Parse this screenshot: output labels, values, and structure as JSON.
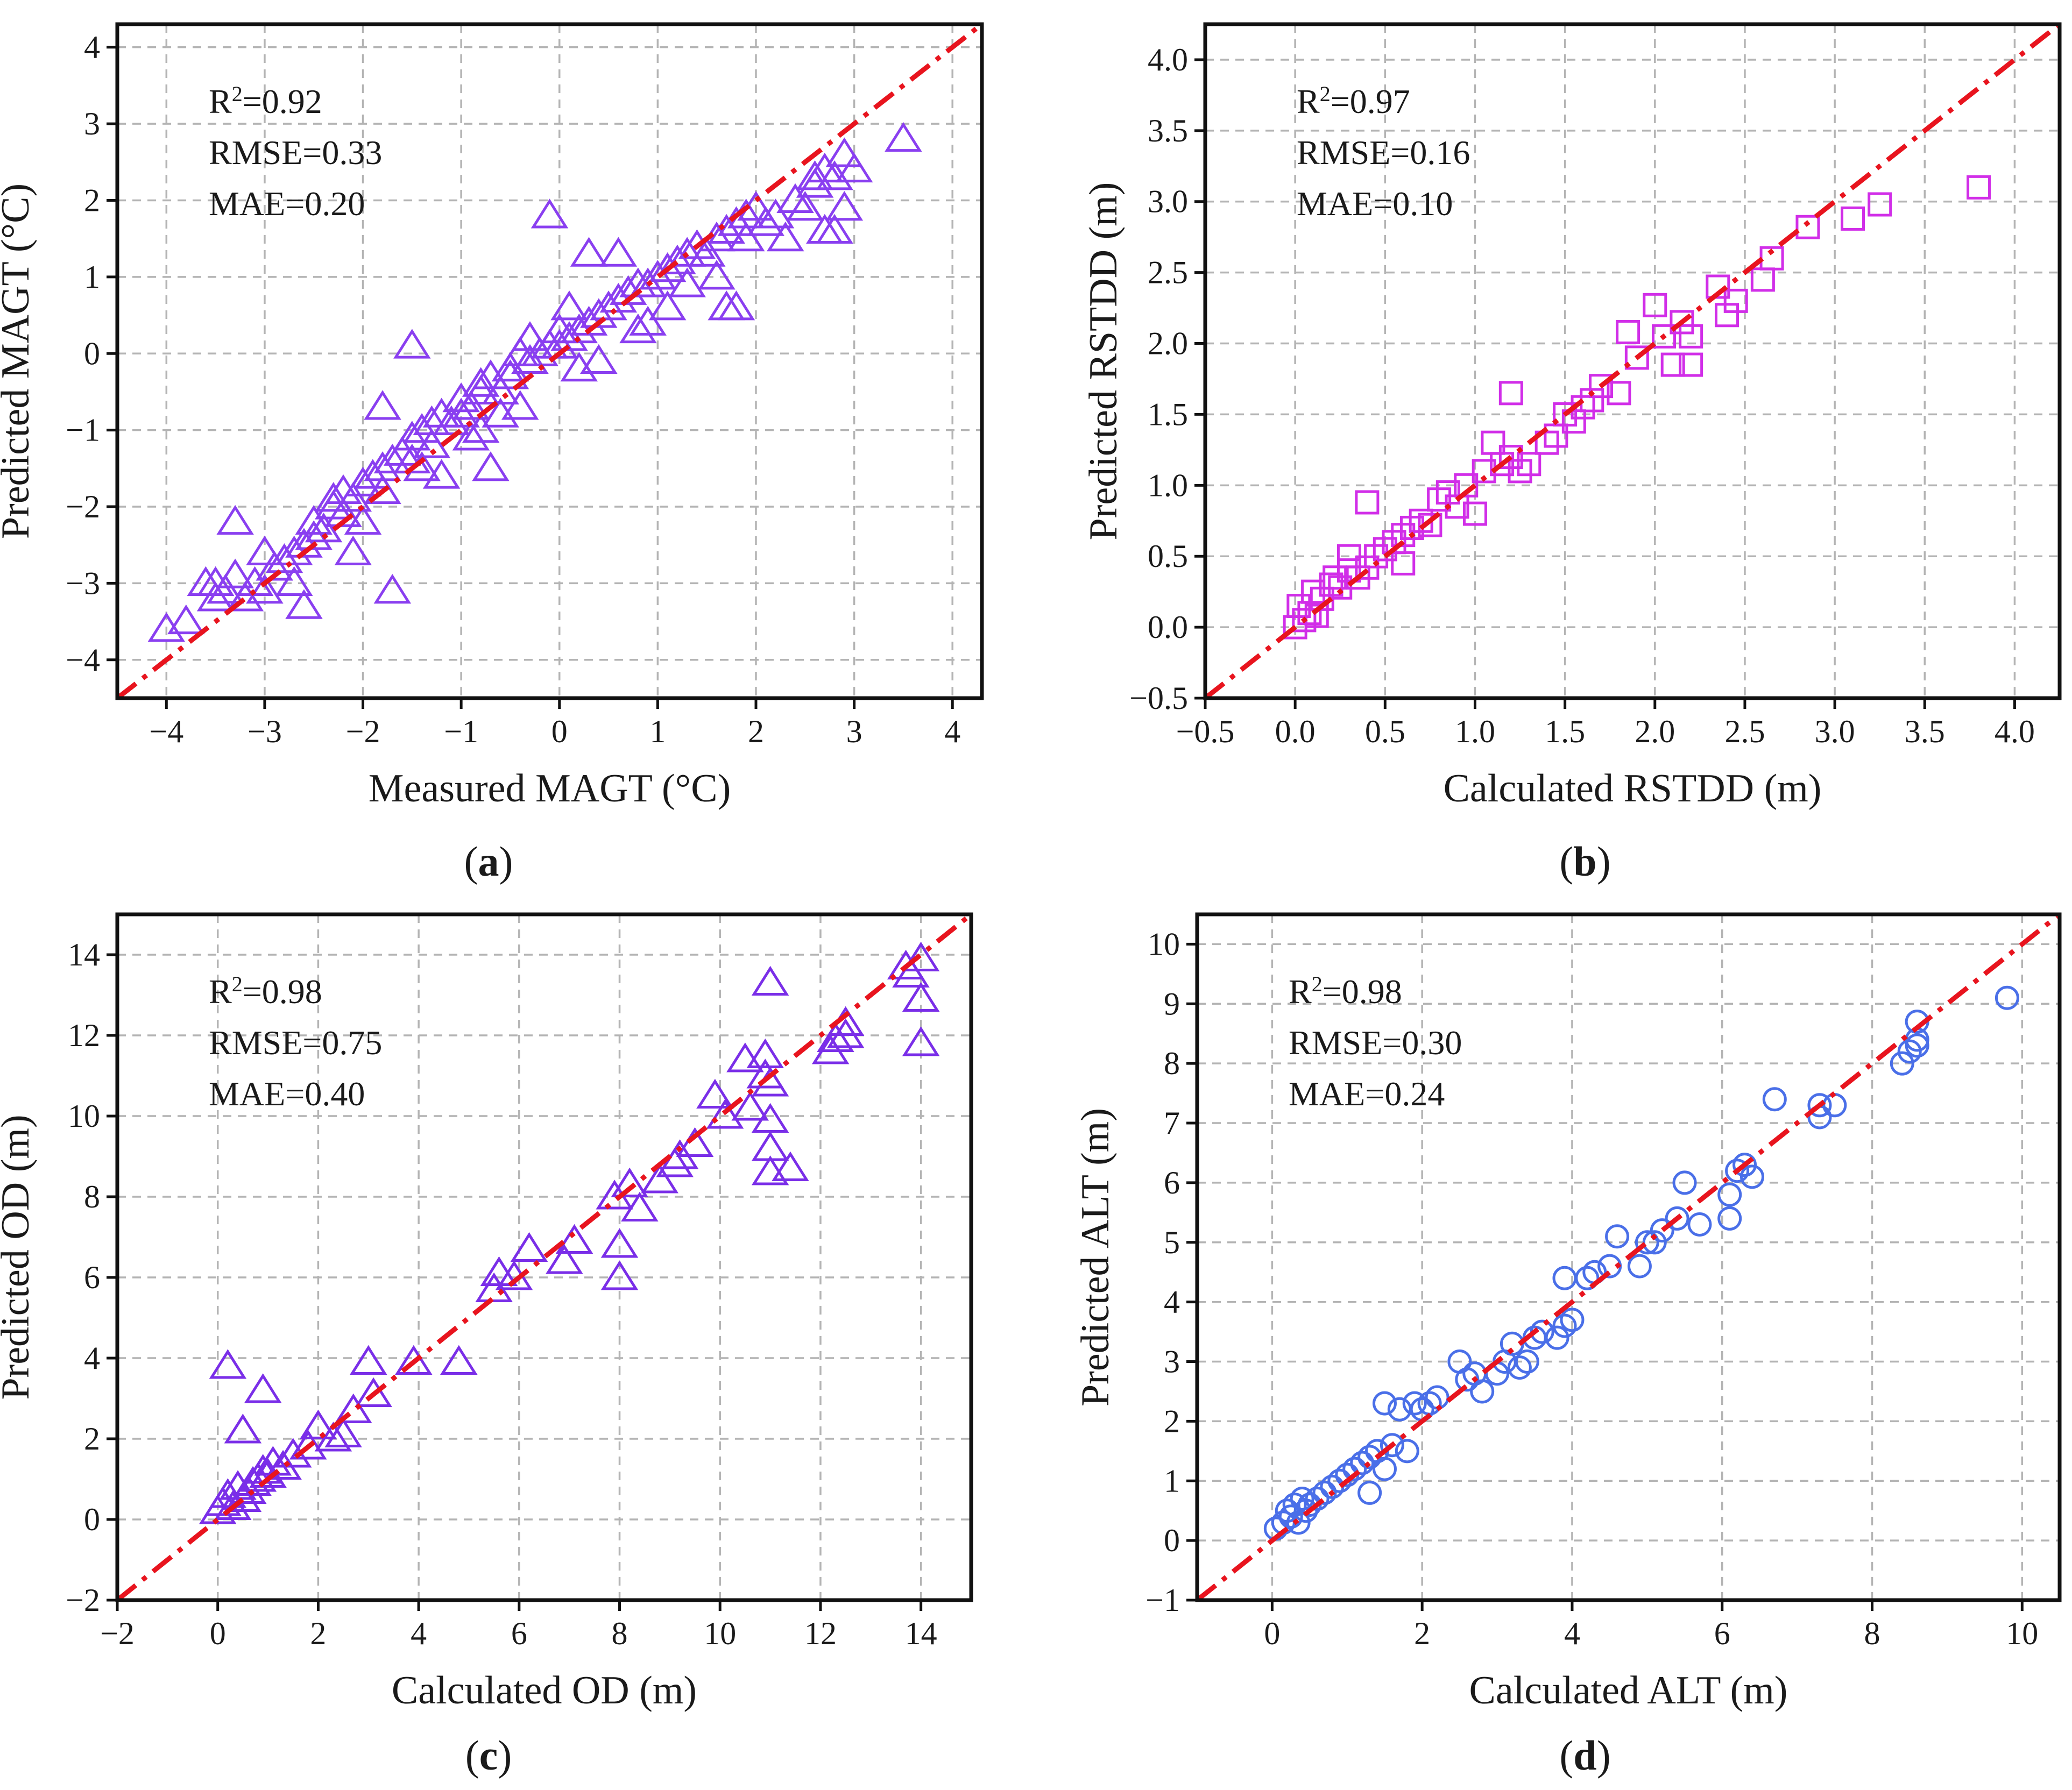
{
  "colors": {
    "triangle_purple": "#8a3ff0",
    "square_magenta": "#d12ee8",
    "circle_blue": "#4a6fe8",
    "reference_line": "#e8141e",
    "grid": "#b4b4b4",
    "axis": "#111111"
  },
  "chart_data": [
    {
      "type": "scatter",
      "panel_label": "(a)",
      "marker": "triangle",
      "color": "#8a3ff0",
      "xlabel": "Measured MAGT (°C)",
      "ylabel": "Predicted MAGT (°C)",
      "xlim": [
        -4.5,
        4.3
      ],
      "ylim": [
        -4.5,
        4.3
      ],
      "xticks": [
        -4,
        -3,
        -2,
        -1,
        0,
        1,
        2,
        3,
        4
      ],
      "yticks": [
        -4,
        -3,
        -2,
        -1,
        0,
        1,
        2,
        3,
        4
      ],
      "xtick_labels": [
        "−4",
        "−3",
        "−2",
        "−1",
        "0",
        "1",
        "2",
        "3",
        "4"
      ],
      "ytick_labels": [
        "−4",
        "−3",
        "−2",
        "−1",
        "0",
        "1",
        "2",
        "3",
        "4"
      ],
      "grid": true,
      "reference_line": "1:1",
      "stats": {
        "r2": "0.92",
        "rmse": "RMSE=0.33",
        "mae": "MAE=0.20"
      },
      "x": [
        -4.0,
        -3.8,
        -3.6,
        -3.5,
        -3.4,
        -3.3,
        -3.2,
        -3.1,
        -3.0,
        -2.9,
        -2.8,
        -2.7,
        -2.6,
        -2.5,
        -2.5,
        -2.4,
        -2.3,
        -2.2,
        -2.2,
        -2.1,
        -2.0,
        -1.9,
        -1.8,
        -1.8,
        -1.7,
        -1.6,
        -1.5,
        -1.5,
        -1.4,
        -1.3,
        -1.3,
        -1.2,
        -1.1,
        -1.0,
        -1.0,
        -0.9,
        -0.8,
        -0.8,
        -0.7,
        -0.6,
        -0.5,
        -0.5,
        -0.4,
        -0.3,
        -0.3,
        -0.2,
        -0.1,
        0.0,
        0.0,
        0.1,
        0.2,
        0.3,
        0.4,
        0.5,
        0.6,
        0.7,
        0.8,
        0.9,
        1.0,
        1.1,
        1.2,
        1.3,
        1.4,
        1.5,
        1.6,
        1.7,
        1.8,
        1.9,
        2.0,
        2.1,
        2.3,
        2.5,
        2.6,
        2.7,
        2.8,
        2.9,
        3.0,
        3.5,
        -1.5,
        -0.1,
        -1.8,
        -1.7,
        -3.3,
        -2.6,
        -2.1,
        -0.7,
        0.2,
        0.6,
        1.7,
        1.8,
        2.7,
        2.9,
        -0.8,
        -1.4,
        -2.0,
        -2.7,
        0.9,
        1.3,
        1.6,
        -0.4,
        -0.6,
        0.4,
        0.8,
        1.1,
        1.9,
        2.2,
        -1.2,
        -0.9,
        -3.0,
        -3.5,
        -2.3,
        0.3,
        0.1,
        2.4,
        2.6,
        2.8
      ],
      "y": [
        -3.6,
        -3.5,
        -3.0,
        -3.2,
        -3.1,
        -2.9,
        -3.2,
        -3.0,
        -2.6,
        -2.8,
        -2.7,
        -2.6,
        -2.5,
        -2.4,
        -2.2,
        -2.3,
        -2.0,
        -2.1,
        -1.8,
        -1.9,
        -1.7,
        -1.6,
        -1.5,
        -1.8,
        -1.4,
        -1.3,
        -1.4,
        -1.1,
        -1.0,
        -1.2,
        -0.9,
        -0.8,
        -0.9,
        -0.6,
        -0.8,
        -0.7,
        -0.5,
        -0.4,
        -0.3,
        -0.5,
        -0.2,
        -0.3,
        0.0,
        -0.1,
        0.2,
        0.0,
        0.1,
        0.3,
        0.1,
        0.2,
        0.3,
        0.4,
        0.5,
        0.6,
        0.7,
        0.8,
        0.9,
        0.9,
        1.0,
        1.1,
        1.2,
        1.3,
        1.4,
        1.3,
        1.5,
        1.6,
        1.7,
        1.8,
        1.9,
        1.7,
        1.5,
        1.9,
        2.2,
        2.4,
        2.3,
        2.6,
        2.4,
        2.8,
        0.1,
        1.8,
        -0.7,
        -3.1,
        -2.2,
        -3.3,
        -2.6,
        -1.5,
        -0.2,
        1.3,
        0.6,
        0.6,
        1.6,
        1.9,
        -1.0,
        -1.5,
        -2.2,
        -3.0,
        0.4,
        0.9,
        1.0,
        -0.7,
        -0.8,
        -0.1,
        0.3,
        0.6,
        1.5,
        1.8,
        -1.6,
        -1.1,
        -3.1,
        -3.0,
        -1.9,
        1.3,
        0.6,
        2.0,
        2.3,
        1.6
      ]
    },
    {
      "type": "scatter",
      "panel_label": "(b)",
      "marker": "square",
      "color": "#d12ee8",
      "xlabel": "Calculated RSTDD (m)",
      "ylabel": "Predicted RSTDD (m)",
      "xlim": [
        -0.5,
        4.25
      ],
      "ylim": [
        -0.5,
        4.25
      ],
      "xticks": [
        -0.5,
        0.0,
        0.5,
        1.0,
        1.5,
        2.0,
        2.5,
        3.0,
        3.5,
        4.0
      ],
      "yticks": [
        -0.5,
        0.0,
        0.5,
        1.0,
        1.5,
        2.0,
        2.5,
        3.0,
        3.5,
        4.0
      ],
      "xtick_labels": [
        "−0.5",
        "0.0",
        "0.5",
        "1.0",
        "1.5",
        "2.0",
        "2.5",
        "3.0",
        "3.5",
        "4.0"
      ],
      "ytick_labels": [
        "−0.5",
        "0.0",
        "0.5",
        "1.0",
        "1.5",
        "2.0",
        "2.5",
        "3.0",
        "3.5",
        "4.0"
      ],
      "grid": true,
      "reference_line": "1:1",
      "stats": {
        "r2": "0.97",
        "rmse": "RMSE=0.16",
        "mae": "MAE=0.10"
      },
      "x": [
        0.0,
        0.02,
        0.05,
        0.08,
        0.1,
        0.12,
        0.15,
        0.2,
        0.22,
        0.25,
        0.3,
        0.35,
        0.4,
        0.45,
        0.5,
        0.55,
        0.6,
        0.65,
        0.7,
        0.75,
        0.8,
        0.85,
        0.9,
        0.95,
        1.0,
        1.05,
        1.1,
        1.15,
        1.2,
        1.25,
        1.3,
        1.4,
        1.45,
        1.5,
        1.55,
        1.6,
        1.65,
        1.7,
        1.8,
        1.85,
        1.9,
        2.0,
        2.05,
        2.1,
        2.15,
        2.2,
        2.35,
        2.4,
        2.45,
        2.6,
        2.65,
        2.85,
        3.1,
        3.25,
        3.8,
        0.4,
        1.2,
        2.2,
        0.3,
        0.6
      ],
      "y": [
        0.0,
        0.15,
        0.05,
        0.1,
        0.25,
        0.08,
        0.2,
        0.3,
        0.35,
        0.28,
        0.4,
        0.35,
        0.42,
        0.5,
        0.55,
        0.6,
        0.65,
        0.7,
        0.75,
        0.72,
        0.9,
        0.95,
        0.85,
        1.0,
        0.8,
        1.1,
        1.3,
        1.15,
        1.2,
        1.1,
        1.15,
        1.3,
        1.35,
        1.5,
        1.45,
        1.55,
        1.6,
        1.7,
        1.65,
        2.08,
        1.9,
        2.27,
        2.05,
        1.85,
        2.15,
        2.05,
        2.4,
        2.2,
        2.3,
        2.45,
        2.6,
        2.82,
        2.88,
        2.98,
        3.1,
        0.88,
        1.65,
        1.85,
        0.5,
        0.45
      ]
    },
    {
      "type": "scatter",
      "panel_label": "(c)",
      "marker": "triangle",
      "color": "#7a2ee8",
      "xlabel": "Calculated OD (m)",
      "ylabel": "Predicted OD (m)",
      "xlim": [
        -2,
        15
      ],
      "ylim": [
        -2,
        15
      ],
      "xticks": [
        -2,
        0,
        2,
        4,
        6,
        8,
        10,
        12,
        14
      ],
      "yticks": [
        -2,
        0,
        2,
        4,
        6,
        8,
        10,
        12,
        14
      ],
      "xtick_labels": [
        "−2",
        "0",
        "2",
        "4",
        "6",
        "8",
        "10",
        "12",
        "14"
      ],
      "ytick_labels": [
        "−2",
        "0",
        "2",
        "4",
        "6",
        "8",
        "10",
        "12",
        "14"
      ],
      "grid": true,
      "reference_line": "1:1",
      "stats": {
        "r2": "0.98",
        "rmse": "RMSE=0.75",
        "mae": "MAE=0.40"
      },
      "x": [
        0.0,
        0.1,
        0.2,
        0.3,
        0.4,
        0.5,
        0.6,
        0.7,
        0.8,
        0.9,
        1.0,
        1.1,
        1.3,
        1.5,
        1.8,
        2.0,
        2.3,
        2.5,
        2.7,
        3.0,
        3.1,
        3.9,
        4.8,
        5.5,
        5.6,
        5.9,
        6.2,
        6.9,
        7.1,
        7.9,
        8.0,
        8.0,
        8.2,
        8.4,
        8.8,
        9.1,
        9.2,
        9.5,
        9.9,
        10.1,
        10.5,
        10.6,
        10.9,
        11.0,
        11.0,
        11.0,
        11.0,
        11.4,
        12.2,
        12.5,
        12.5,
        13.7,
        14.0,
        14.0,
        14.0,
        0.2,
        0.9,
        0.5,
        11.0,
        10.9,
        12.3,
        13.8
      ],
      "y": [
        0.2,
        0.4,
        0.6,
        0.3,
        0.8,
        0.5,
        0.7,
        0.9,
        1.0,
        1.2,
        1.1,
        1.4,
        1.3,
        1.6,
        1.8,
        2.3,
        2.0,
        2.1,
        2.7,
        3.9,
        3.1,
        3.9,
        3.9,
        5.7,
        6.1,
        6.0,
        6.7,
        6.4,
        6.9,
        8.0,
        6.8,
        6.0,
        8.3,
        7.7,
        8.4,
        8.8,
        9.0,
        9.3,
        10.5,
        10.0,
        11.4,
        10.2,
        11.0,
        13.3,
        10.8,
        9.9,
        9.2,
        8.7,
        11.6,
        12.3,
        12.0,
        13.7,
        13.9,
        12.9,
        11.8,
        3.8,
        3.2,
        2.2,
        8.6,
        11.5,
        11.9,
        13.5
      ]
    },
    {
      "type": "scatter",
      "panel_label": "(d)",
      "marker": "circle",
      "color": "#4a6fe8",
      "xlabel": "Calculated ALT (m)",
      "ylabel": "Predicted ALT (m)",
      "xlim": [
        -1,
        10.5
      ],
      "ylim": [
        -1,
        10.5
      ],
      "xticks": [
        0,
        2,
        4,
        6,
        8,
        10
      ],
      "yticks": [
        -1,
        0,
        1,
        2,
        3,
        4,
        5,
        6,
        7,
        8,
        9,
        10
      ],
      "xtick_labels": [
        "0",
        "2",
        "4",
        "6",
        "8",
        "10"
      ],
      "ytick_labels": [
        "−1",
        "0",
        "1",
        "2",
        "3",
        "4",
        "5",
        "6",
        "7",
        "8",
        "9",
        "10"
      ],
      "grid": true,
      "reference_line": "1:1",
      "stats": {
        "r2": "0.98",
        "rmse": "RMSE=0.30",
        "mae": "MAE=0.24"
      },
      "x": [
        0.05,
        0.15,
        0.2,
        0.25,
        0.3,
        0.35,
        0.4,
        0.45,
        0.5,
        0.6,
        0.7,
        0.8,
        0.9,
        1.0,
        1.1,
        1.2,
        1.3,
        1.4,
        1.5,
        1.5,
        1.6,
        1.7,
        1.8,
        1.9,
        2.0,
        2.1,
        2.2,
        2.5,
        2.6,
        2.7,
        2.8,
        3.0,
        3.1,
        3.2,
        3.3,
        3.4,
        3.5,
        3.6,
        3.8,
        3.9,
        4.0,
        4.2,
        4.3,
        4.5,
        4.6,
        4.9,
        5.0,
        5.1,
        5.2,
        5.4,
        5.5,
        5.7,
        6.1,
        6.1,
        6.2,
        6.3,
        6.4,
        6.7,
        7.3,
        7.3,
        7.5,
        8.4,
        8.5,
        8.6,
        8.6,
        8.6,
        9.8,
        3.9,
        1.3
      ],
      "y": [
        0.2,
        0.3,
        0.5,
        0.4,
        0.6,
        0.3,
        0.7,
        0.5,
        0.6,
        0.7,
        0.8,
        0.9,
        1.0,
        1.1,
        1.2,
        1.3,
        1.4,
        1.5,
        2.3,
        1.2,
        1.6,
        2.2,
        1.5,
        2.3,
        2.2,
        2.3,
        2.4,
        3.0,
        2.7,
        2.8,
        2.5,
        2.8,
        3.0,
        3.3,
        2.9,
        3.0,
        3.4,
        3.5,
        3.4,
        3.6,
        3.7,
        4.4,
        4.5,
        4.6,
        5.1,
        4.6,
        5.0,
        5.0,
        5.2,
        5.4,
        6.0,
        5.3,
        5.4,
        5.8,
        6.2,
        6.3,
        6.1,
        7.4,
        7.1,
        7.3,
        7.3,
        8.0,
        8.2,
        8.3,
        8.7,
        8.4,
        9.1,
        4.4,
        0.8
      ]
    }
  ]
}
